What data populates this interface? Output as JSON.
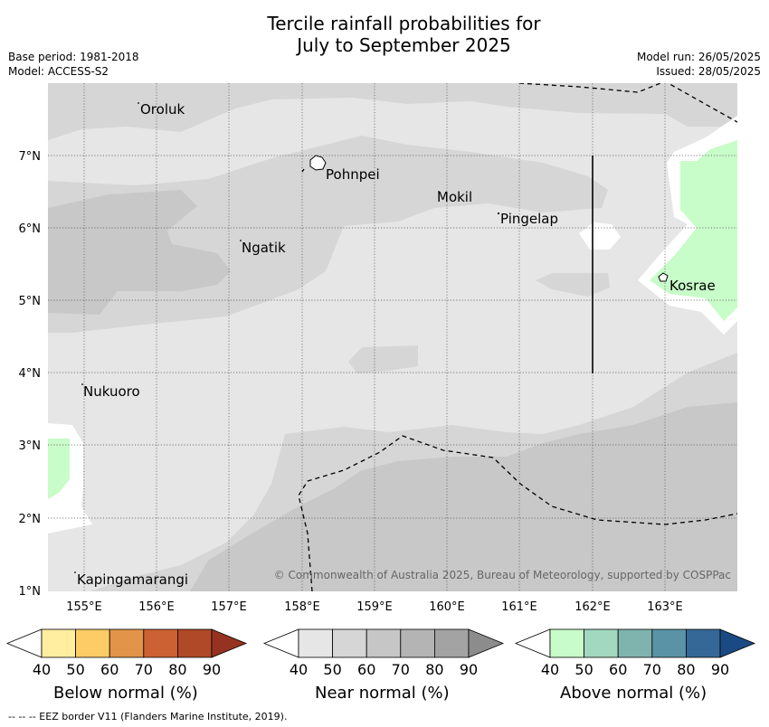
{
  "header": {
    "title_line1": "Tercile rainfall probabilities for",
    "title_line2": "July to September 2025",
    "base_period": "Base period: 1981-2018",
    "model": "Model: ACCESS-S2",
    "model_run": "Model run: 26/05/2025",
    "issued": "Issued: 28/05/2025"
  },
  "map": {
    "lat_labels": [
      "7°N",
      "6°N",
      "5°N",
      "4°N",
      "3°N",
      "2°N",
      "1°N"
    ],
    "lon_labels": [
      "155°E",
      "156°E",
      "157°E",
      "158°E",
      "159°E",
      "160°E",
      "161°E",
      "162°E",
      "163°E"
    ],
    "places": [
      "Oroluk",
      "Pohnpei",
      "Mokil",
      "Pingelap",
      "Ngatik",
      "Kosrae",
      "Nukuoro",
      "Kapingamarangi"
    ],
    "copyright": "© Commonwealth of Australia 2025, Bureau of Meteorology, supported by COSPPac",
    "colors": {
      "near_40": "#e4e4e4",
      "near_50": "#d5d5d5",
      "near_60": "#c8c8c8",
      "above_40": "#c8fcc8"
    }
  },
  "legend": {
    "ticks": [
      "40",
      "50",
      "60",
      "70",
      "80",
      "90"
    ],
    "below": {
      "title": "Below normal (%)",
      "colors": [
        "#ffffff",
        "#ffeda0",
        "#fecc66",
        "#e29448",
        "#cc6133",
        "#b04927",
        "#963220"
      ]
    },
    "near": {
      "title": "Near normal (%)",
      "colors": [
        "#ffffff",
        "#e6e6e6",
        "#d6d6d6",
        "#c6c6c6",
        "#b4b4b4",
        "#a3a3a3",
        "#8c8c8c"
      ]
    },
    "above": {
      "title": "Above normal (%)",
      "colors": [
        "#ffffff",
        "#c8fcca",
        "#a2d8bf",
        "#7fb4ae",
        "#5a93a5",
        "#356896",
        "#1a4a83"
      ]
    }
  },
  "footer": {
    "eez_note": "-- -- -- EEZ border V11 (Flanders Marine Institute, 2019)."
  }
}
